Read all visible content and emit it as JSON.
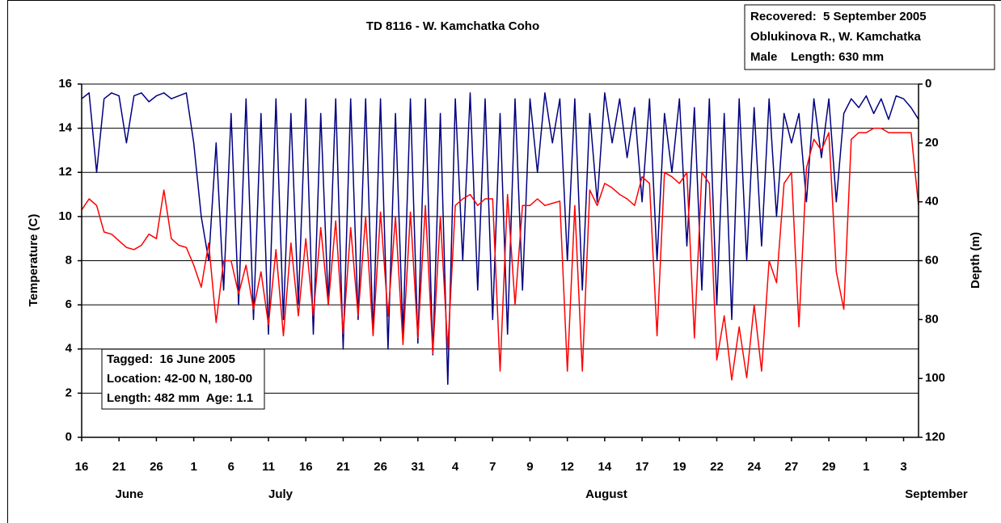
{
  "chart_data": {
    "type": "line",
    "title": "TD 8116 - W. Kamchatka Coho",
    "ylabel": "Temperature (C)",
    "y2label": "Depth (m)",
    "annotations": [
      [
        "Recovered:  5 September 2005",
        "Oblukinova R., W. Kamchatka",
        "Male    Length: 630 mm"
      ],
      [
        "Tagged:  16 June 2005",
        "Location: 42-00 N, 180-00",
        "Length: 482 mm  Age: 1.1"
      ]
    ],
    "month_labels": [
      "June",
      "July",
      "August",
      "September"
    ],
    "categories": [
      "16",
      null,
      null,
      null,
      null,
      "21",
      null,
      null,
      null,
      null,
      "26",
      null,
      null,
      null,
      null,
      "1",
      null,
      null,
      null,
      null,
      "6",
      null,
      null,
      null,
      null,
      "11",
      null,
      null,
      null,
      null,
      "16",
      null,
      null,
      null,
      null,
      "21",
      null,
      null,
      null,
      null,
      "26",
      null,
      null,
      null,
      null,
      "31",
      null,
      null,
      null,
      null,
      "4",
      null,
      null,
      null,
      null,
      "7",
      null,
      null,
      null,
      null,
      "9",
      null,
      null,
      null,
      null,
      "12",
      null,
      null,
      null,
      null,
      "14",
      null,
      null,
      null,
      null,
      "17",
      null,
      null,
      null,
      null,
      "19",
      null,
      null,
      null,
      null,
      "22",
      null,
      null,
      null,
      null,
      "24",
      null,
      null,
      null,
      null,
      "27",
      null,
      null,
      null,
      null,
      "29",
      null,
      null,
      null,
      null,
      "1",
      null,
      null,
      null,
      null,
      "3",
      null,
      null
    ],
    "ylim": [
      0,
      16
    ],
    "yticks": [
      0,
      2,
      4,
      6,
      8,
      10,
      12,
      14,
      16
    ],
    "y2lim": [
      120,
      0
    ],
    "y2ticks": [
      0,
      20,
      40,
      60,
      80,
      100,
      120
    ],
    "grid": true,
    "series": [
      {
        "name": "Depth",
        "color": "#000080",
        "axis": "y2",
        "values": [
          5,
          3,
          30,
          5,
          3,
          4,
          20,
          4,
          3,
          6,
          4,
          3,
          5,
          4,
          3,
          20,
          45,
          60,
          20,
          70,
          10,
          75,
          5,
          80,
          10,
          85,
          5,
          80,
          10,
          75,
          5,
          85,
          10,
          75,
          5,
          90,
          5,
          80,
          5,
          85,
          5,
          90,
          10,
          85,
          5,
          88,
          5,
          92,
          10,
          102,
          5,
          60,
          3,
          70,
          5,
          80,
          10,
          85,
          5,
          70,
          5,
          30,
          3,
          20,
          5,
          60,
          5,
          70,
          10,
          40,
          3,
          20,
          5,
          25,
          8,
          40,
          5,
          60,
          10,
          30,
          5,
          55,
          8,
          70,
          5,
          75,
          10,
          80,
          5,
          60,
          8,
          55,
          5,
          45,
          10,
          20,
          10,
          40,
          5,
          25,
          5,
          40,
          10,
          5,
          8,
          4,
          10,
          5,
          12,
          4,
          5,
          8,
          12
        ]
      },
      {
        "name": "Temperature",
        "color": "#ff0000",
        "values": [
          10.3,
          10.8,
          10.5,
          9.3,
          9.2,
          8.9,
          8.6,
          8.5,
          8.7,
          9.2,
          9.0,
          11.2,
          9.0,
          8.7,
          8.6,
          7.8,
          6.8,
          8.8,
          5.2,
          8.0,
          8.0,
          6.5,
          7.8,
          5.8,
          7.5,
          5.1,
          8.5,
          4.6,
          8.8,
          5.5,
          9.0,
          5.5,
          9.5,
          6.0,
          9.8,
          4.7,
          9.5,
          5.5,
          10.0,
          4.6,
          10.2,
          5.5,
          10.0,
          4.2,
          10.2,
          4.5,
          10.5,
          3.8,
          10.0,
          4.0,
          10.5,
          10.8,
          11.0,
          10.5,
          10.8,
          10.8,
          3.0,
          11.0,
          6.0,
          10.5,
          10.5,
          10.8,
          10.5,
          10.6,
          10.7,
          3.0,
          10.5,
          3.0,
          11.2,
          10.5,
          11.5,
          11.3,
          11.0,
          10.8,
          10.5,
          11.8,
          11.5,
          4.6,
          12.0,
          11.8,
          11.5,
          12.0,
          4.5,
          12.0,
          11.5,
          3.5,
          5.5,
          2.6,
          5.0,
          2.7,
          6.0,
          3.0,
          8.0,
          7.0,
          11.5,
          12.0,
          5.0,
          12.2,
          13.5,
          13.0,
          13.8,
          7.5,
          5.8,
          13.5,
          13.8,
          13.8,
          14.0,
          14.0,
          13.8,
          13.8,
          13.8,
          13.8,
          10.5
        ]
      }
    ]
  }
}
